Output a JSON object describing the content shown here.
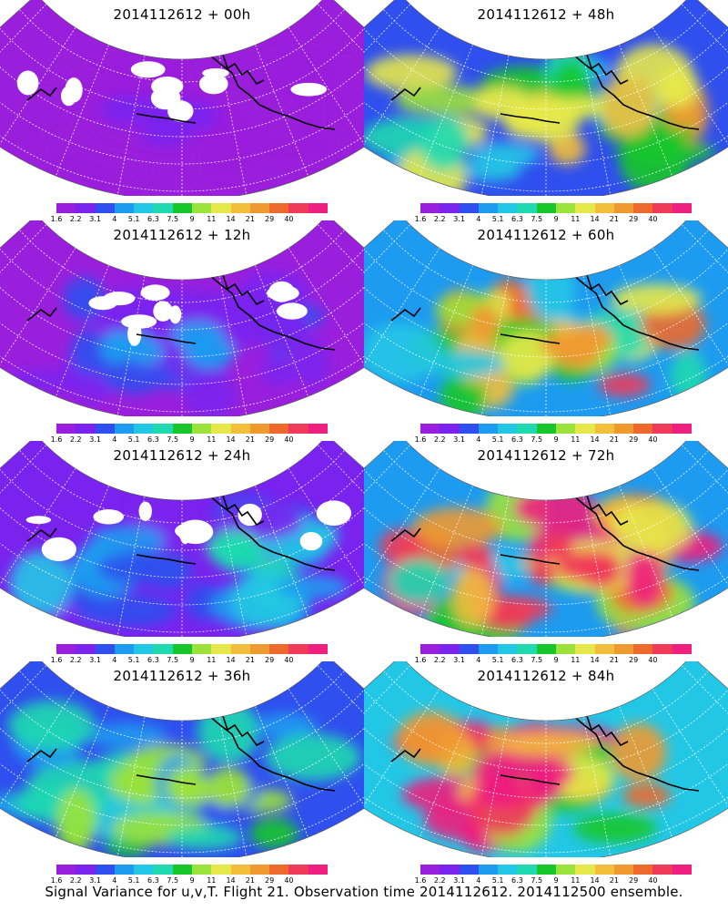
{
  "panels": [
    {
      "title": "2014112612 + 00h",
      "col": 0,
      "row": 0,
      "level": 0.05
    },
    {
      "title": "2014112612 + 12h",
      "col": 0,
      "row": 1,
      "level": 0.15
    },
    {
      "title": "2014112612 + 24h",
      "col": 0,
      "row": 2,
      "level": 0.28
    },
    {
      "title": "2014112612 + 36h",
      "col": 0,
      "row": 3,
      "level": 0.42
    },
    {
      "title": "2014112612 + 48h",
      "col": 1,
      "row": 0,
      "level": 0.55
    },
    {
      "title": "2014112612 + 60h",
      "col": 1,
      "row": 1,
      "level": 0.65
    },
    {
      "title": "2014112612 + 72h",
      "col": 1,
      "row": 2,
      "level": 0.78
    },
    {
      "title": "2014112612 + 84h",
      "col": 1,
      "row": 3,
      "level": 0.88
    }
  ],
  "colorbar": {
    "labels": [
      "1.6",
      "2.2",
      "3.1",
      "4",
      "5.1",
      "6.3",
      "7.5",
      "9",
      "11",
      "14",
      "21",
      "29",
      "40"
    ],
    "colors": [
      "#9a1fdc",
      "#7a22ee",
      "#2f4fee",
      "#1c9bf0",
      "#22c7e6",
      "#1fd9b0",
      "#16c62a",
      "#9be23a",
      "#e6e84a",
      "#f2be3c",
      "#ef9a30",
      "#ee6a2c",
      "#f03a5a",
      "#ee1f7e"
    ]
  },
  "caption": "Signal Variance for u,v,T. Flight 21. Observation time 2014112612. 2014112500 ensemble."
}
